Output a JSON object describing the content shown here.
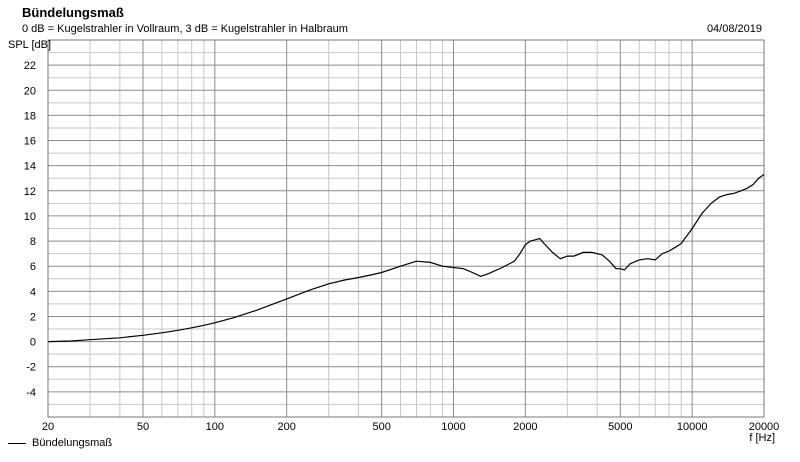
{
  "header": {
    "title": "Bündelungsmaß",
    "subtitle": "0 dB = Kugelstrahler in Vollraum, 3 dB = Kugelstrahler in Halbraum",
    "date": "04/08/2019"
  },
  "legend": {
    "label": "Bündelungsmaß"
  },
  "chart_data": {
    "type": "line",
    "title": "Bündelungsmaß",
    "subtitle": "0 dB = Kugelstrahler in Vollraum, 3 dB = Kugelstrahler in Halbraum",
    "ylabel": "SPL [dB]",
    "xlabel": "f [Hz]",
    "x_scale": "log",
    "xlim": [
      20,
      20000
    ],
    "ylim": [
      -6,
      24
    ],
    "grid": true,
    "legend_position": "bottom-left",
    "x_ticks": [
      20,
      50,
      100,
      200,
      500,
      1000,
      2000,
      5000,
      10000,
      20000
    ],
    "y_ticks": [
      -4,
      -2,
      0,
      2,
      4,
      6,
      8,
      10,
      12,
      14,
      16,
      18,
      20,
      22
    ],
    "colors": {
      "line": "#000000",
      "grid_major": "#8c8c8c",
      "grid_minor": "#c8c8c8"
    },
    "series": [
      {
        "name": "Bündelungsmaß",
        "x": [
          20,
          25,
          30,
          40,
          50,
          60,
          70,
          80,
          90,
          100,
          120,
          150,
          200,
          250,
          300,
          350,
          400,
          450,
          500,
          600,
          700,
          800,
          900,
          1000,
          1100,
          1200,
          1300,
          1400,
          1600,
          1800,
          1900,
          2000,
          2100,
          2200,
          2300,
          2400,
          2600,
          2800,
          3000,
          3200,
          3500,
          3800,
          4200,
          4500,
          4800,
          5000,
          5200,
          5500,
          6000,
          6500,
          7000,
          7500,
          8000,
          8500,
          9000,
          10000,
          11000,
          12000,
          13000,
          14000,
          15000,
          16000,
          17000,
          18000,
          19000,
          20000
        ],
        "y": [
          0.0,
          0.05,
          0.15,
          0.3,
          0.5,
          0.7,
          0.9,
          1.1,
          1.3,
          1.5,
          1.9,
          2.5,
          3.4,
          4.1,
          4.6,
          4.9,
          5.1,
          5.3,
          5.5,
          6.0,
          6.4,
          6.3,
          6.0,
          5.9,
          5.8,
          5.5,
          5.2,
          5.4,
          5.9,
          6.4,
          7.0,
          7.7,
          8.0,
          8.1,
          8.2,
          7.8,
          7.1,
          6.6,
          6.8,
          6.8,
          7.1,
          7.1,
          6.9,
          6.4,
          5.8,
          5.8,
          5.7,
          6.2,
          6.5,
          6.6,
          6.5,
          7.0,
          7.2,
          7.5,
          7.8,
          9.0,
          10.2,
          11.0,
          11.5,
          11.7,
          11.8,
          12.0,
          12.2,
          12.5,
          13.0,
          13.3
        ]
      }
    ]
  }
}
